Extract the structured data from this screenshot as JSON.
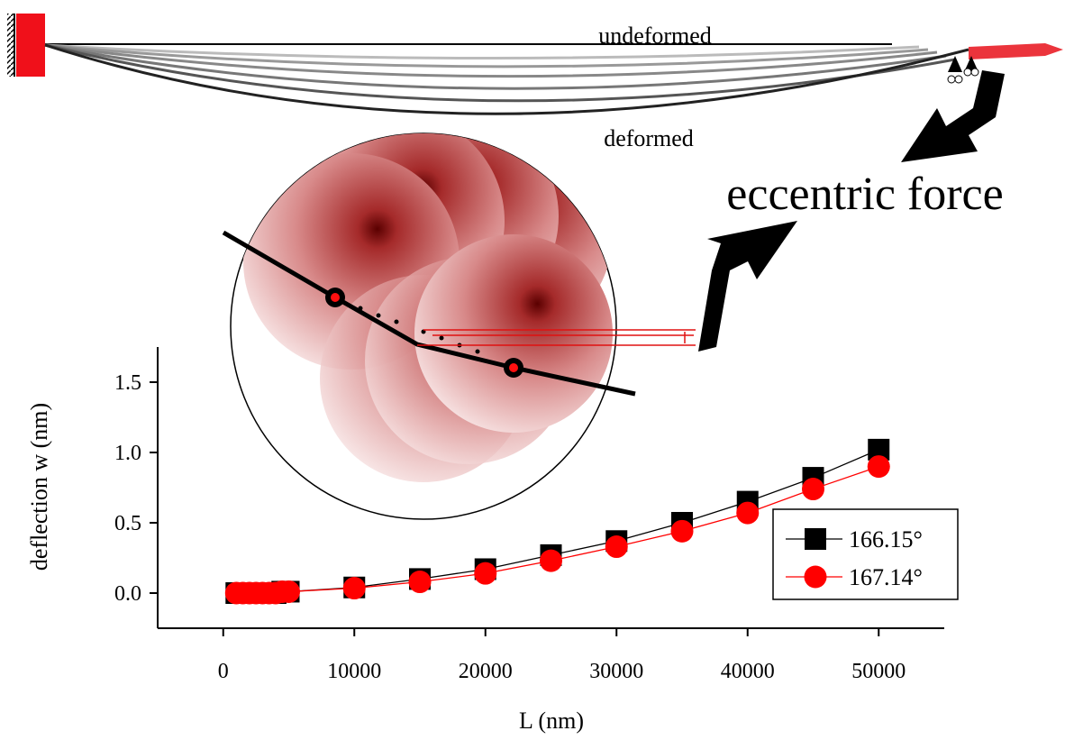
{
  "chart_data": {
    "type": "line",
    "xlabel": "L (nm)",
    "ylabel": "deflection w (nm)",
    "annotations": [
      "undeformed",
      "deformed",
      "eccentric force"
    ],
    "xlim": [
      -5000,
      55000
    ],
    "xticks": [
      0,
      10000,
      20000,
      30000,
      40000,
      50000
    ],
    "ylim": [
      -0.25,
      1.75
    ],
    "yticks": [
      {
        "value": 0,
        "label": "0.0"
      },
      {
        "value": 0.5,
        "label": "0.5"
      },
      {
        "value": 1,
        "label": "1.0"
      },
      {
        "value": 1.5,
        "label": "1.5"
      }
    ],
    "legend": "lower right",
    "series": [
      {
        "name": "166.15°",
        "color": "#000000",
        "marker": "square",
        "x": [
          1000,
          1500,
          2000,
          2500,
          3000,
          3500,
          4000,
          4500,
          5000,
          10000,
          15000,
          20000,
          25000,
          30000,
          35000,
          40000,
          45000,
          50000
        ],
        "values": [
          0,
          0,
          0,
          0,
          0,
          0,
          0,
          0.01,
          0.01,
          0.04,
          0.1,
          0.17,
          0.27,
          0.37,
          0.5,
          0.65,
          0.82,
          1.02
        ]
      },
      {
        "name": "167.14°",
        "color": "#ff0000",
        "marker": "circle",
        "x": [
          1000,
          1500,
          2000,
          2500,
          3000,
          3500,
          4000,
          4500,
          5000,
          10000,
          15000,
          20000,
          25000,
          30000,
          35000,
          40000,
          45000,
          50000
        ],
        "values": [
          0,
          0,
          0,
          0,
          0,
          0,
          0,
          0.01,
          0.01,
          0.035,
          0.08,
          0.14,
          0.23,
          0.33,
          0.44,
          0.57,
          0.74,
          0.9
        ]
      }
    ]
  }
}
